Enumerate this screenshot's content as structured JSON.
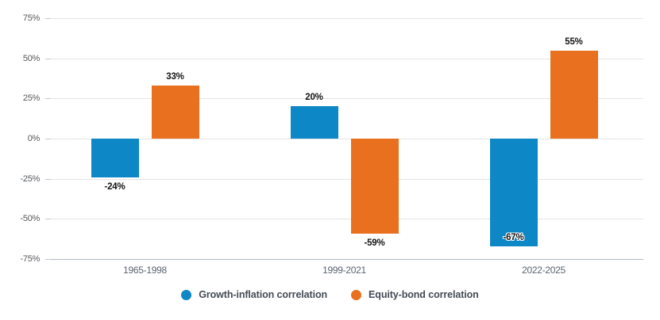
{
  "chart_data": {
    "type": "bar",
    "title": "",
    "categories": [
      "1965-1998",
      "1999-2021",
      "2022-2025"
    ],
    "series": [
      {
        "name": "Growth-inflation correlation",
        "color": "#0d87c5",
        "values": [
          -24,
          20,
          -67
        ],
        "data_labels": [
          "-24%",
          "20%",
          "-67%"
        ],
        "label_placement": [
          "outside",
          "outside",
          "inside"
        ]
      },
      {
        "name": "Equity-bond correlation",
        "color": "#e8701e",
        "values": [
          33,
          -59,
          55
        ],
        "data_labels": [
          "33%",
          "-59%",
          "55%"
        ],
        "label_placement": [
          "outside",
          "outside",
          "outside"
        ]
      }
    ],
    "y_axis": {
      "min": -75,
      "max": 75,
      "step": 25,
      "tick_labels": [
        "75%",
        "50%",
        "25%",
        "0%",
        "-25%",
        "-50%",
        "-75%"
      ]
    },
    "grid": true,
    "legend_position": "bottom"
  },
  "style": {
    "background": "#ffffff",
    "gridline_color": "#e4e5e7",
    "axis_line_color": "#b2b9c2",
    "tick_label_color": "#55585d",
    "category_label_color": "#5b6470",
    "data_label_color": "#141414",
    "legend_text_color": "#434b55"
  }
}
